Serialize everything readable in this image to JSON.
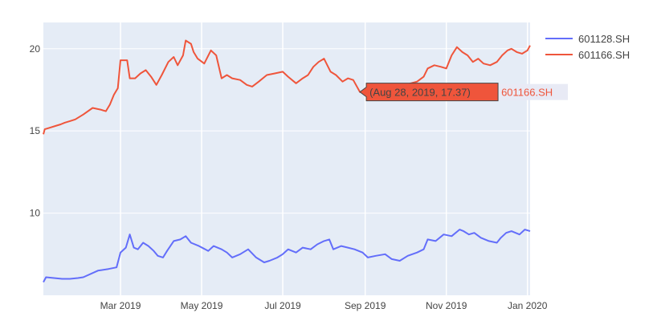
{
  "chart_data": {
    "type": "line",
    "title": "",
    "xlabel": "",
    "ylabel": "",
    "x_range": [
      "2019-01-02",
      "2020-01-03"
    ],
    "ylim": [
      5.0,
      21.6
    ],
    "y_ticks": [
      10,
      15,
      20
    ],
    "x_ticks": [
      {
        "date": "2019-03-01",
        "label": "Mar 2019"
      },
      {
        "date": "2019-05-01",
        "label": "May 2019"
      },
      {
        "date": "2019-07-01",
        "label": "Jul 2019"
      },
      {
        "date": "2019-09-01",
        "label": "Sep 2019"
      },
      {
        "date": "2019-11-01",
        "label": "Nov 2019"
      },
      {
        "date": "2020-01-01",
        "label": "Jan 2020"
      }
    ],
    "grid": true,
    "legend_position": "top-right",
    "series": [
      {
        "name": "601128.SH",
        "color": "#636efa",
        "points": [
          [
            "2019-01-02",
            5.8
          ],
          [
            "2019-01-04",
            6.1
          ],
          [
            "2019-01-10",
            6.05
          ],
          [
            "2019-01-16",
            6.0
          ],
          [
            "2019-01-22",
            6.0
          ],
          [
            "2019-01-28",
            6.05
          ],
          [
            "2019-02-01",
            6.1
          ],
          [
            "2019-02-12",
            6.5
          ],
          [
            "2019-02-20",
            6.6
          ],
          [
            "2019-02-26",
            6.7
          ],
          [
            "2019-03-01",
            7.6
          ],
          [
            "2019-03-05",
            7.9
          ],
          [
            "2019-03-08",
            8.7
          ],
          [
            "2019-03-11",
            7.9
          ],
          [
            "2019-03-14",
            7.8
          ],
          [
            "2019-03-18",
            8.2
          ],
          [
            "2019-03-22",
            8.0
          ],
          [
            "2019-03-26",
            7.7
          ],
          [
            "2019-03-29",
            7.4
          ],
          [
            "2019-04-02",
            7.3
          ],
          [
            "2019-04-05",
            7.7
          ],
          [
            "2019-04-10",
            8.3
          ],
          [
            "2019-04-15",
            8.4
          ],
          [
            "2019-04-19",
            8.6
          ],
          [
            "2019-04-23",
            8.2
          ],
          [
            "2019-04-29",
            8.0
          ],
          [
            "2019-05-06",
            7.7
          ],
          [
            "2019-05-10",
            8.0
          ],
          [
            "2019-05-16",
            7.8
          ],
          [
            "2019-05-20",
            7.6
          ],
          [
            "2019-05-24",
            7.3
          ],
          [
            "2019-05-30",
            7.5
          ],
          [
            "2019-06-05",
            7.8
          ],
          [
            "2019-06-11",
            7.3
          ],
          [
            "2019-06-17",
            7.0
          ],
          [
            "2019-06-21",
            7.1
          ],
          [
            "2019-06-27",
            7.3
          ],
          [
            "2019-07-01",
            7.5
          ],
          [
            "2019-07-05",
            7.8
          ],
          [
            "2019-07-11",
            7.6
          ],
          [
            "2019-07-16",
            7.9
          ],
          [
            "2019-07-22",
            7.8
          ],
          [
            "2019-07-27",
            8.1
          ],
          [
            "2019-08-01",
            8.3
          ],
          [
            "2019-08-05",
            8.4
          ],
          [
            "2019-08-08",
            7.8
          ],
          [
            "2019-08-14",
            8.0
          ],
          [
            "2019-08-19",
            7.9
          ],
          [
            "2019-08-24",
            7.8
          ],
          [
            "2019-08-30",
            7.6
          ],
          [
            "2019-09-03",
            7.3
          ],
          [
            "2019-09-09",
            7.4
          ],
          [
            "2019-09-16",
            7.5
          ],
          [
            "2019-09-21",
            7.2
          ],
          [
            "2019-09-27",
            7.1
          ],
          [
            "2019-10-03",
            7.4
          ],
          [
            "2019-10-10",
            7.6
          ],
          [
            "2019-10-15",
            7.8
          ],
          [
            "2019-10-18",
            8.4
          ],
          [
            "2019-10-24",
            8.3
          ],
          [
            "2019-10-30",
            8.7
          ],
          [
            "2019-11-05",
            8.6
          ],
          [
            "2019-11-11",
            9.0
          ],
          [
            "2019-11-14",
            8.9
          ],
          [
            "2019-11-18",
            8.7
          ],
          [
            "2019-11-22",
            8.8
          ],
          [
            "2019-11-27",
            8.5
          ],
          [
            "2019-12-03",
            8.3
          ],
          [
            "2019-12-09",
            8.2
          ],
          [
            "2019-12-12",
            8.5
          ],
          [
            "2019-12-16",
            8.8
          ],
          [
            "2019-12-20",
            8.9
          ],
          [
            "2019-12-26",
            8.7
          ],
          [
            "2019-12-30",
            9.0
          ],
          [
            "2020-01-03",
            8.9
          ]
        ]
      },
      {
        "name": "601166.SH",
        "color": "#ef553b",
        "points": [
          [
            "2019-01-02",
            14.8
          ],
          [
            "2019-01-03",
            15.1
          ],
          [
            "2019-01-07",
            15.2
          ],
          [
            "2019-01-11",
            15.3
          ],
          [
            "2019-01-15",
            15.4
          ],
          [
            "2019-01-18",
            15.5
          ],
          [
            "2019-01-22",
            15.6
          ],
          [
            "2019-01-26",
            15.7
          ],
          [
            "2019-02-01",
            16.0
          ],
          [
            "2019-02-08",
            16.4
          ],
          [
            "2019-02-14",
            16.3
          ],
          [
            "2019-02-18",
            16.2
          ],
          [
            "2019-02-21",
            16.6
          ],
          [
            "2019-02-24",
            17.2
          ],
          [
            "2019-02-27",
            17.6
          ],
          [
            "2019-03-01",
            19.3
          ],
          [
            "2019-03-06",
            19.3
          ],
          [
            "2019-03-08",
            18.2
          ],
          [
            "2019-03-12",
            18.2
          ],
          [
            "2019-03-16",
            18.5
          ],
          [
            "2019-03-20",
            18.7
          ],
          [
            "2019-03-24",
            18.3
          ],
          [
            "2019-03-28",
            17.8
          ],
          [
            "2019-04-01",
            18.4
          ],
          [
            "2019-04-06",
            19.2
          ],
          [
            "2019-04-10",
            19.5
          ],
          [
            "2019-04-13",
            19.0
          ],
          [
            "2019-04-17",
            19.6
          ],
          [
            "2019-04-19",
            20.5
          ],
          [
            "2019-04-23",
            20.3
          ],
          [
            "2019-04-25",
            19.8
          ],
          [
            "2019-04-28",
            19.4
          ],
          [
            "2019-05-03",
            19.1
          ],
          [
            "2019-05-08",
            19.9
          ],
          [
            "2019-05-12",
            19.6
          ],
          [
            "2019-05-16",
            18.2
          ],
          [
            "2019-05-20",
            18.4
          ],
          [
            "2019-05-24",
            18.2
          ],
          [
            "2019-05-30",
            18.1
          ],
          [
            "2019-06-04",
            17.8
          ],
          [
            "2019-06-08",
            17.7
          ],
          [
            "2019-06-13",
            18.0
          ],
          [
            "2019-06-19",
            18.4
          ],
          [
            "2019-06-25",
            18.5
          ],
          [
            "2019-07-01",
            18.6
          ],
          [
            "2019-07-05",
            18.3
          ],
          [
            "2019-07-11",
            17.9
          ],
          [
            "2019-07-16",
            18.2
          ],
          [
            "2019-07-20",
            18.4
          ],
          [
            "2019-07-24",
            18.9
          ],
          [
            "2019-07-28",
            19.2
          ],
          [
            "2019-08-01",
            19.4
          ],
          [
            "2019-08-06",
            18.6
          ],
          [
            "2019-08-10",
            18.4
          ],
          [
            "2019-08-15",
            18.0
          ],
          [
            "2019-08-19",
            18.2
          ],
          [
            "2019-08-23",
            18.1
          ],
          [
            "2019-08-28",
            17.37
          ],
          [
            "2019-09-02",
            17.3
          ],
          [
            "2019-09-07",
            17.5
          ],
          [
            "2019-09-14",
            17.4
          ],
          [
            "2019-09-22",
            17.6
          ],
          [
            "2019-10-01",
            17.8
          ],
          [
            "2019-10-10",
            18.0
          ],
          [
            "2019-10-15",
            18.3
          ],
          [
            "2019-10-18",
            18.8
          ],
          [
            "2019-10-23",
            19.0
          ],
          [
            "2019-10-28",
            18.9
          ],
          [
            "2019-11-01",
            18.8
          ],
          [
            "2019-11-05",
            19.6
          ],
          [
            "2019-11-09",
            20.1
          ],
          [
            "2019-11-13",
            19.8
          ],
          [
            "2019-11-17",
            19.6
          ],
          [
            "2019-11-21",
            19.2
          ],
          [
            "2019-11-25",
            19.4
          ],
          [
            "2019-11-29",
            19.1
          ],
          [
            "2019-12-04",
            19.0
          ],
          [
            "2019-12-09",
            19.2
          ],
          [
            "2019-12-13",
            19.6
          ],
          [
            "2019-12-17",
            19.9
          ],
          [
            "2019-12-20",
            20.0
          ],
          [
            "2019-12-24",
            19.8
          ],
          [
            "2019-12-28",
            19.7
          ],
          [
            "2020-01-01",
            19.9
          ],
          [
            "2020-01-03",
            20.2
          ]
        ]
      }
    ],
    "hover": {
      "series": "601166.SH",
      "date": "2019-08-28",
      "text": "(Aug 28, 2019, 17.37)",
      "label": "601166.SH"
    }
  }
}
